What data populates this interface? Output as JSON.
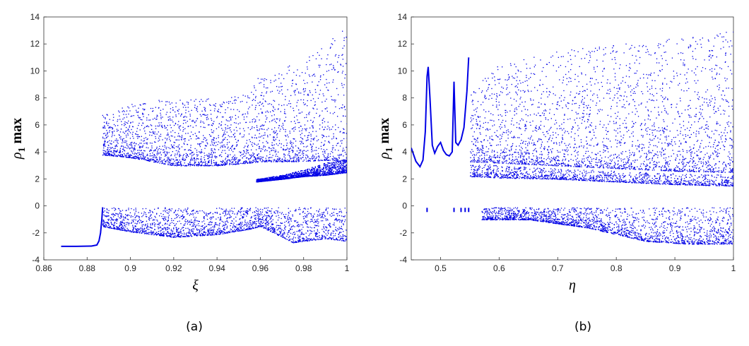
{
  "chart_data": [
    {
      "type": "scatter",
      "panel_label": "(a)",
      "xlabel": "ξ",
      "ylabel_symbol": "ρ",
      "ylabel_subscript": "1",
      "ylabel_suffix": " max",
      "xlim": [
        0.86,
        1.0
      ],
      "ylim": [
        -4,
        14
      ],
      "xticks": [
        "0.86",
        "0.88",
        "0.9",
        "0.92",
        "0.94",
        "0.96",
        "0.98",
        "1"
      ],
      "yticks": [
        "-4",
        "-2",
        "0",
        "2",
        "4",
        "6",
        "8",
        "10",
        "12",
        "14"
      ],
      "grid": false,
      "color": "#0000e6",
      "series": [
        {
          "kind": "line",
          "x": [
            0.868,
            0.875,
            0.882,
            0.8845,
            0.8855,
            0.8862,
            0.8868,
            0.8872
          ],
          "y": [
            -3.0,
            -3.0,
            -2.98,
            -2.9,
            -2.6,
            -2.0,
            -1.0,
            -0.1
          ]
        },
        {
          "kind": "band",
          "x": [
            0.887,
            0.9,
            0.92,
            0.94,
            0.955,
            0.96,
            0.975,
            0.99,
            1.0
          ],
          "ymin": [
            3.8,
            3.6,
            3.0,
            3.0,
            3.2,
            3.3,
            3.3,
            3.4,
            3.3
          ],
          "ymax": [
            6.8,
            7.6,
            8.0,
            8.0,
            8.5,
            9.8,
            10.5,
            12.0,
            13.3
          ],
          "density": 1.0
        },
        {
          "kind": "band",
          "x": [
            0.887,
            0.9,
            0.92,
            0.94,
            0.955,
            0.96,
            0.975,
            0.99,
            1.0
          ],
          "ymin": [
            -1.5,
            -1.9,
            -2.3,
            -2.1,
            -1.7,
            -1.5,
            -2.7,
            -2.4,
            -2.6
          ],
          "ymax": [
            -0.1,
            -0.1,
            -0.1,
            -0.1,
            -0.1,
            -0.1,
            -0.1,
            -0.1,
            -0.1
          ],
          "density": 0.8
        },
        {
          "kind": "band",
          "x": [
            0.958,
            0.97,
            0.98,
            0.99,
            1.0
          ],
          "ymin": [
            1.8,
            2.0,
            2.2,
            2.3,
            2.5
          ],
          "ymax": [
            2.0,
            2.3,
            2.7,
            3.2,
            3.5
          ],
          "density": 0.6
        }
      ]
    },
    {
      "type": "scatter",
      "panel_label": "(b)",
      "xlabel": "η",
      "ylabel_symbol": "ρ",
      "ylabel_subscript": "1",
      "ylabel_suffix": " max",
      "xlim": [
        0.45,
        1.0
      ],
      "ylim": [
        -4,
        14
      ],
      "xticks": [
        "0.5",
        "0.6",
        "0.7",
        "0.8",
        "0.9",
        "1"
      ],
      "yticks": [
        "-4",
        "-2",
        "0",
        "2",
        "4",
        "6",
        "8",
        "10",
        "12",
        "14"
      ],
      "grid": false,
      "color": "#0000e6",
      "series": [
        {
          "kind": "line",
          "x": [
            0.45,
            0.458,
            0.465,
            0.47,
            0.474,
            0.477,
            0.479,
            0.482,
            0.486,
            0.49,
            0.495,
            0.5,
            0.505,
            0.51,
            0.515,
            0.52,
            0.523,
            0.526,
            0.53,
            0.535,
            0.54,
            0.545,
            0.548
          ],
          "y": [
            4.3,
            3.3,
            2.9,
            3.4,
            5.5,
            9.6,
            10.3,
            8.0,
            4.5,
            3.9,
            4.4,
            4.7,
            4.1,
            3.8,
            3.7,
            4.0,
            9.2,
            4.7,
            4.5,
            4.9,
            5.8,
            8.5,
            11.0
          ]
        },
        {
          "kind": "band",
          "x": [
            0.55,
            0.6,
            0.7,
            0.8,
            0.9,
            1.0
          ],
          "ymin": [
            3.3,
            3.2,
            3.0,
            2.8,
            2.6,
            2.5
          ],
          "ymax": [
            8.5,
            10.5,
            11.5,
            12.0,
            12.5,
            13.0
          ],
          "density": 1.0
        },
        {
          "kind": "band",
          "x": [
            0.55,
            0.6,
            0.7,
            0.8,
            0.9,
            1.0
          ],
          "ymin": [
            2.2,
            2.1,
            2.0,
            1.8,
            1.6,
            1.5
          ],
          "ymax": [
            3.2,
            3.0,
            2.8,
            2.6,
            2.4,
            2.3
          ],
          "density": 0.5
        },
        {
          "kind": "band",
          "x": [
            0.57,
            0.65,
            0.75,
            0.85,
            0.92,
            1.0
          ],
          "ymin": [
            -1.0,
            -1.0,
            -1.6,
            -2.6,
            -2.8,
            -2.8
          ],
          "ymax": [
            -0.1,
            -0.1,
            -0.1,
            -0.1,
            -0.1,
            -0.1
          ],
          "density": 0.8
        },
        {
          "kind": "points",
          "x": [
            0.477,
            0.523,
            0.535,
            0.542,
            0.548
          ],
          "y": [
            -0.3,
            -0.3,
            -0.3,
            -0.3,
            -0.3
          ]
        }
      ]
    }
  ]
}
